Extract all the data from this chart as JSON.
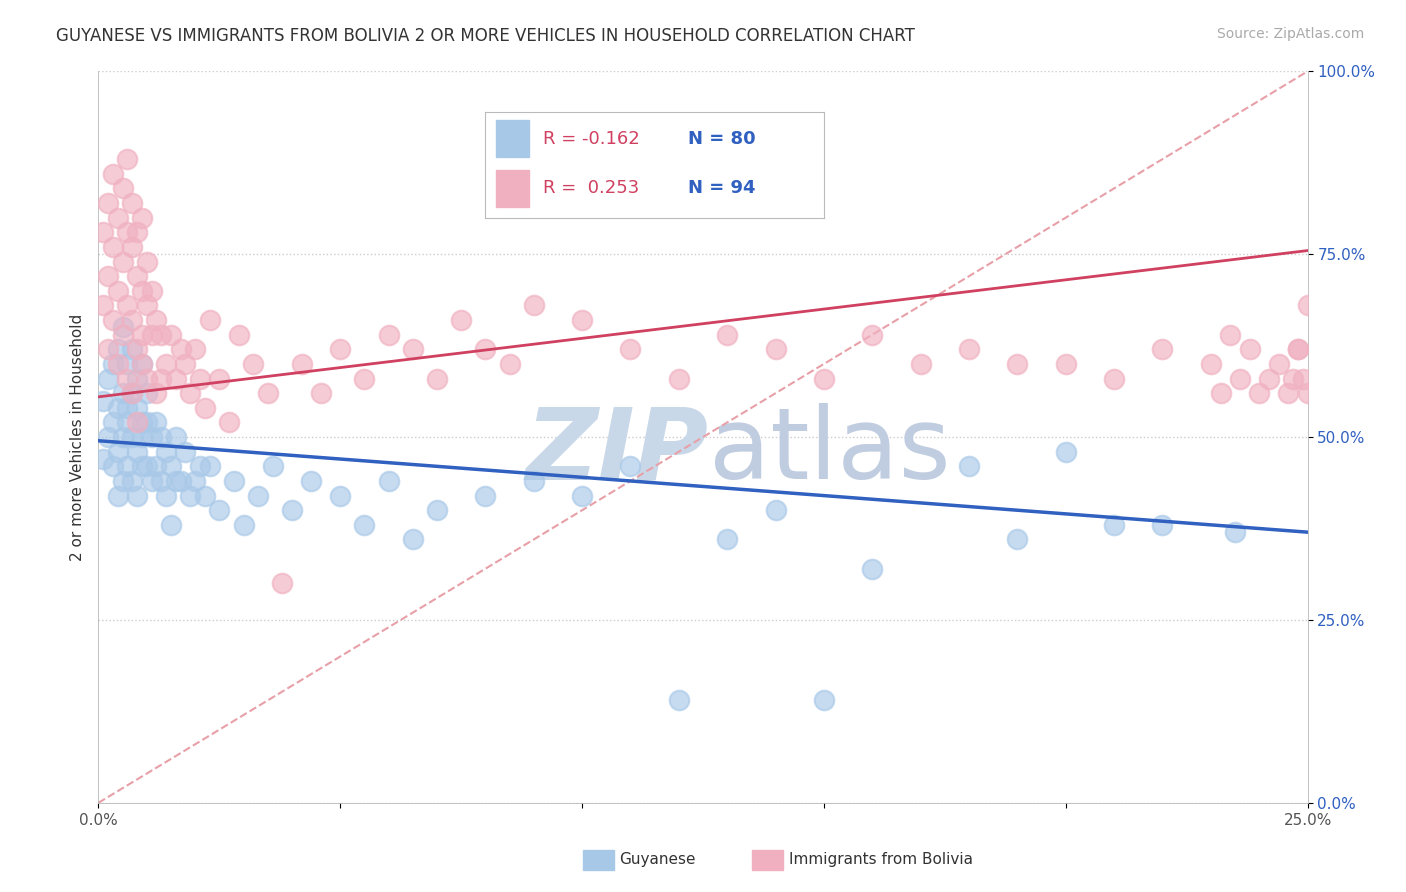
{
  "title": "GUYANESE VS IMMIGRANTS FROM BOLIVIA 2 OR MORE VEHICLES IN HOUSEHOLD CORRELATION CHART",
  "source": "Source: ZipAtlas.com",
  "legend_label_blue": "Guyanese",
  "legend_label_pink": "Immigrants from Bolivia",
  "ylabel": "2 or more Vehicles in Household",
  "xlim": [
    0.0,
    0.25
  ],
  "ylim": [
    0.0,
    1.0
  ],
  "xticks": [
    0.0,
    0.05,
    0.1,
    0.15,
    0.2,
    0.25
  ],
  "xticklabels": [
    "0.0%",
    "",
    "",
    "",
    "",
    "25.0%"
  ],
  "yticks": [
    0.0,
    0.25,
    0.5,
    0.75,
    1.0
  ],
  "yticklabels": [
    "0.0%",
    "25.0%",
    "50.0%",
    "75.0%",
    "100.0%"
  ],
  "legend_blue_R": "-0.162",
  "legend_blue_N": "80",
  "legend_pink_R": "0.253",
  "legend_pink_N": "94",
  "blue_color": "#a8c8e8",
  "pink_color": "#f0b0c0",
  "blue_line_color": "#3060c0",
  "pink_line_color": "#d04060",
  "ref_line_color": "#e8a0a8",
  "watermark_zip_color": "#c8d8e8",
  "watermark_atlas_color": "#c0cce0",
  "title_fontsize": 12,
  "source_fontsize": 10,
  "blue_x": [
    0.001,
    0.001,
    0.002,
    0.002,
    0.003,
    0.003,
    0.003,
    0.004,
    0.004,
    0.004,
    0.004,
    0.005,
    0.005,
    0.005,
    0.005,
    0.006,
    0.006,
    0.006,
    0.006,
    0.007,
    0.007,
    0.007,
    0.007,
    0.008,
    0.008,
    0.008,
    0.008,
    0.009,
    0.009,
    0.009,
    0.009,
    0.01,
    0.01,
    0.01,
    0.011,
    0.011,
    0.012,
    0.012,
    0.013,
    0.013,
    0.014,
    0.014,
    0.015,
    0.015,
    0.016,
    0.016,
    0.017,
    0.018,
    0.019,
    0.02,
    0.021,
    0.022,
    0.023,
    0.025,
    0.028,
    0.03,
    0.033,
    0.036,
    0.04,
    0.044,
    0.05,
    0.055,
    0.06,
    0.065,
    0.07,
    0.08,
    0.09,
    0.1,
    0.11,
    0.12,
    0.13,
    0.14,
    0.15,
    0.16,
    0.18,
    0.19,
    0.2,
    0.21,
    0.22,
    0.235
  ],
  "blue_y": [
    0.47,
    0.55,
    0.5,
    0.58,
    0.52,
    0.46,
    0.6,
    0.54,
    0.48,
    0.62,
    0.42,
    0.56,
    0.5,
    0.44,
    0.65,
    0.52,
    0.46,
    0.6,
    0.54,
    0.56,
    0.5,
    0.44,
    0.62,
    0.54,
    0.48,
    0.58,
    0.42,
    0.52,
    0.46,
    0.6,
    0.5,
    0.52,
    0.46,
    0.56,
    0.5,
    0.44,
    0.52,
    0.46,
    0.5,
    0.44,
    0.48,
    0.42,
    0.46,
    0.38,
    0.5,
    0.44,
    0.44,
    0.48,
    0.42,
    0.44,
    0.46,
    0.42,
    0.46,
    0.4,
    0.44,
    0.38,
    0.42,
    0.46,
    0.4,
    0.44,
    0.42,
    0.38,
    0.44,
    0.36,
    0.4,
    0.42,
    0.44,
    0.42,
    0.46,
    0.14,
    0.36,
    0.4,
    0.14,
    0.32,
    0.46,
    0.36,
    0.48,
    0.38,
    0.38,
    0.37
  ],
  "pink_x": [
    0.001,
    0.001,
    0.002,
    0.002,
    0.002,
    0.003,
    0.003,
    0.003,
    0.004,
    0.004,
    0.004,
    0.005,
    0.005,
    0.005,
    0.006,
    0.006,
    0.006,
    0.006,
    0.007,
    0.007,
    0.007,
    0.007,
    0.008,
    0.008,
    0.008,
    0.008,
    0.009,
    0.009,
    0.009,
    0.009,
    0.01,
    0.01,
    0.01,
    0.011,
    0.011,
    0.012,
    0.012,
    0.013,
    0.013,
    0.014,
    0.015,
    0.016,
    0.017,
    0.018,
    0.019,
    0.02,
    0.021,
    0.022,
    0.023,
    0.025,
    0.027,
    0.029,
    0.032,
    0.035,
    0.038,
    0.042,
    0.046,
    0.05,
    0.055,
    0.06,
    0.065,
    0.07,
    0.075,
    0.08,
    0.085,
    0.09,
    0.1,
    0.11,
    0.12,
    0.13,
    0.14,
    0.15,
    0.16,
    0.17,
    0.18,
    0.19,
    0.2,
    0.21,
    0.22,
    0.23,
    0.232,
    0.234,
    0.236,
    0.238,
    0.24,
    0.242,
    0.244,
    0.246,
    0.248,
    0.249,
    0.25,
    0.25,
    0.248,
    0.247
  ],
  "pink_y": [
    0.78,
    0.68,
    0.82,
    0.72,
    0.62,
    0.76,
    0.66,
    0.86,
    0.8,
    0.7,
    0.6,
    0.84,
    0.74,
    0.64,
    0.78,
    0.68,
    0.58,
    0.88,
    0.76,
    0.66,
    0.56,
    0.82,
    0.72,
    0.62,
    0.52,
    0.78,
    0.7,
    0.6,
    0.8,
    0.64,
    0.68,
    0.58,
    0.74,
    0.64,
    0.7,
    0.66,
    0.56,
    0.64,
    0.58,
    0.6,
    0.64,
    0.58,
    0.62,
    0.6,
    0.56,
    0.62,
    0.58,
    0.54,
    0.66,
    0.58,
    0.52,
    0.64,
    0.6,
    0.56,
    0.3,
    0.6,
    0.56,
    0.62,
    0.58,
    0.64,
    0.62,
    0.58,
    0.66,
    0.62,
    0.6,
    0.68,
    0.66,
    0.62,
    0.58,
    0.64,
    0.62,
    0.58,
    0.64,
    0.6,
    0.62,
    0.6,
    0.6,
    0.58,
    0.62,
    0.6,
    0.56,
    0.64,
    0.58,
    0.62,
    0.56,
    0.58,
    0.6,
    0.56,
    0.62,
    0.58,
    0.56,
    0.68,
    0.62,
    0.58
  ]
}
